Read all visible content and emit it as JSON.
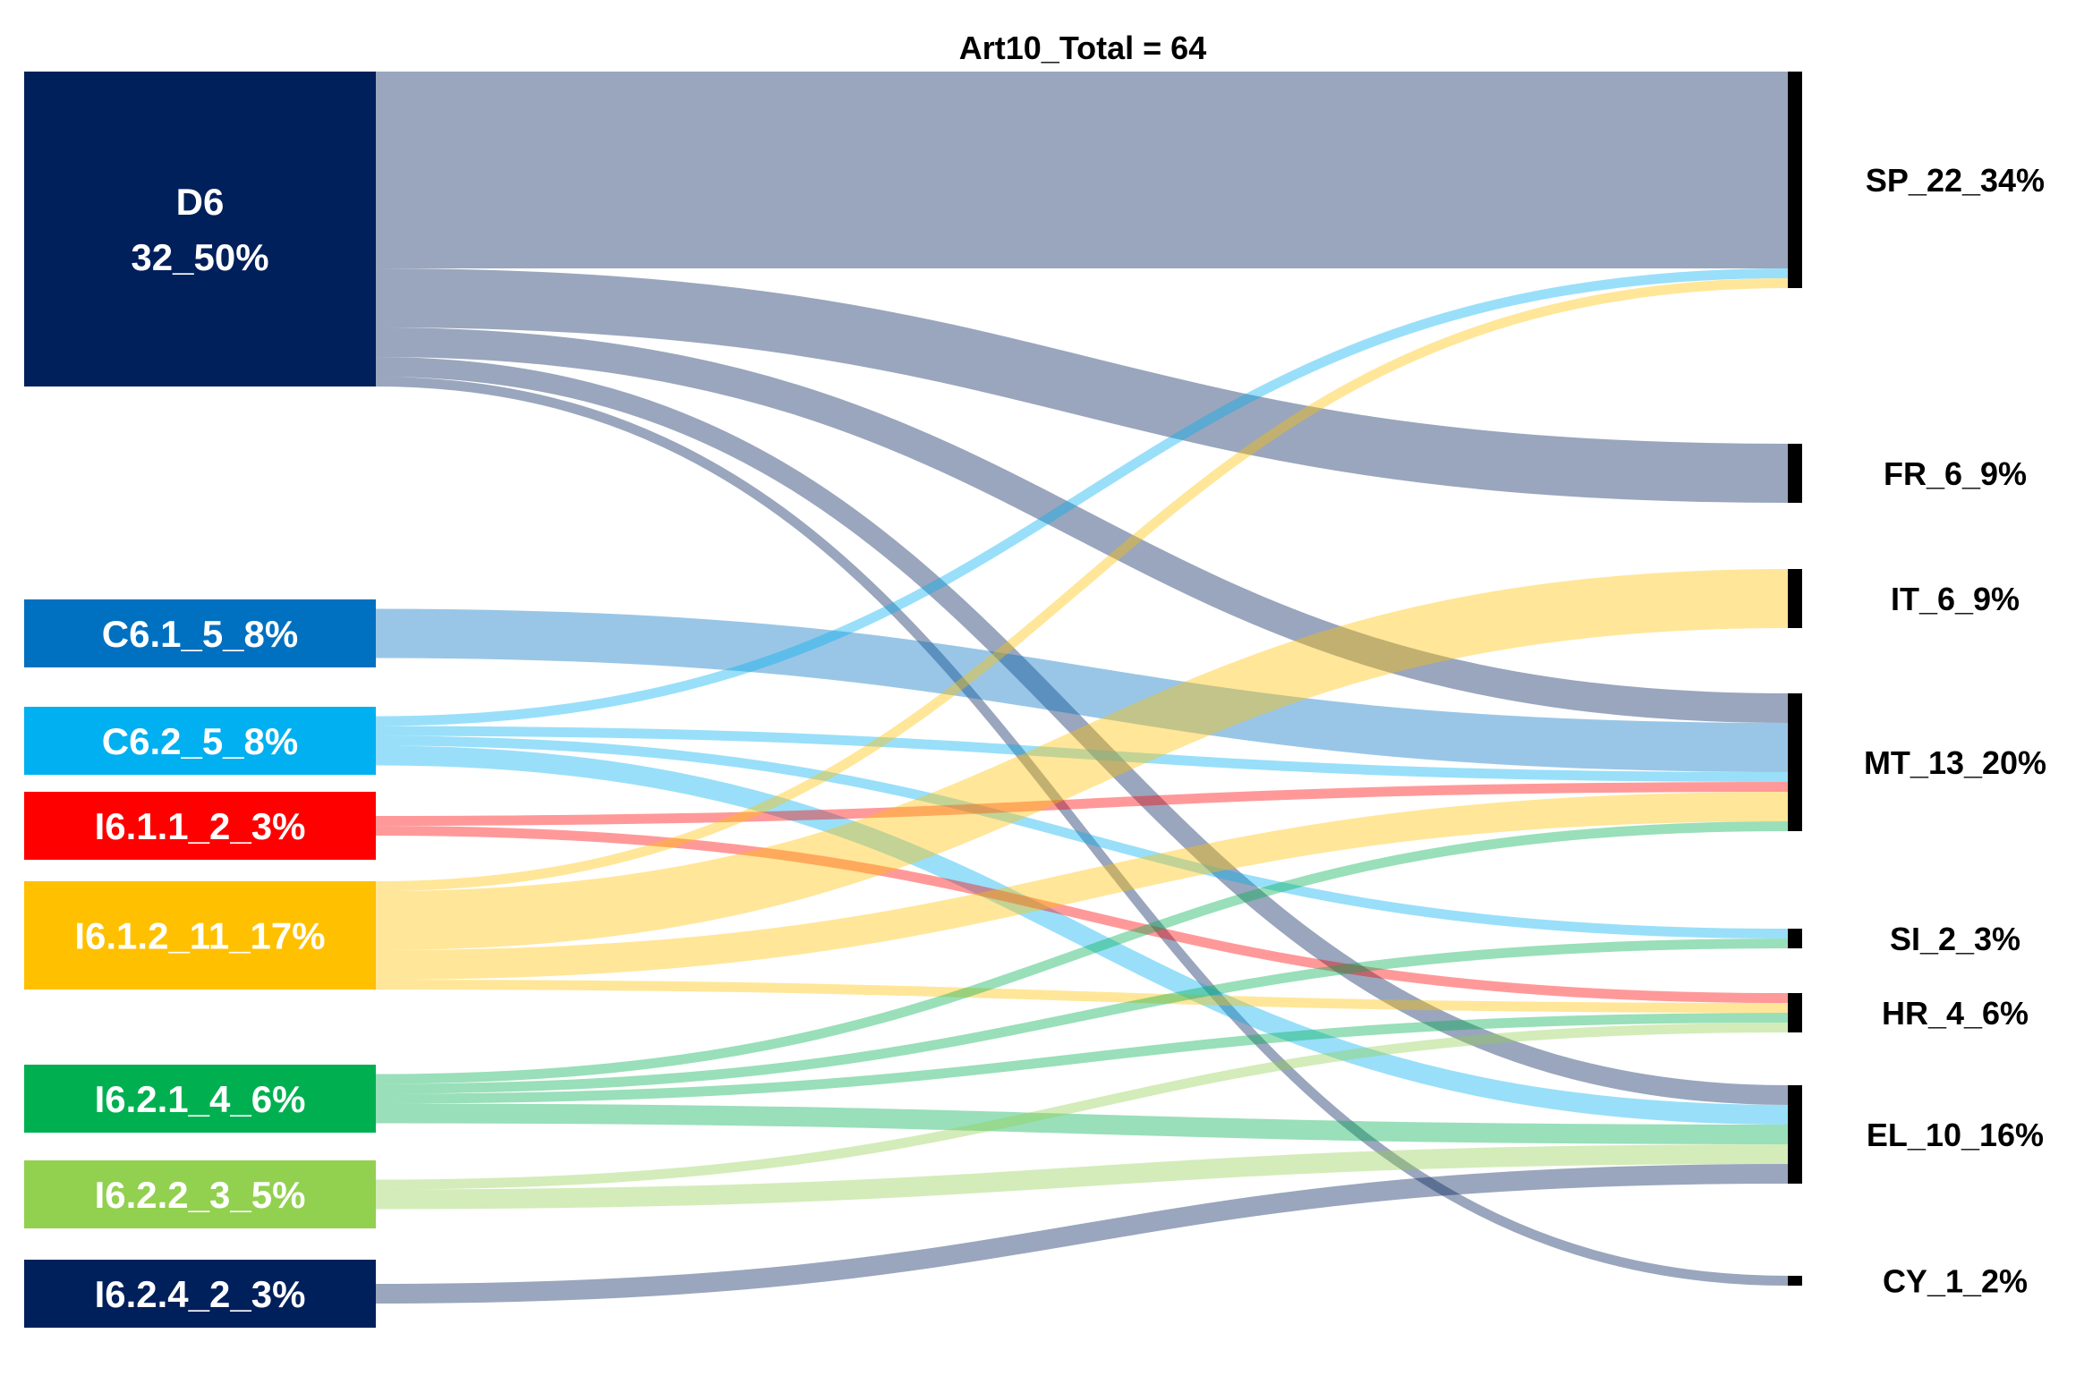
{
  "title": "Art10_Total = 64",
  "colors": {
    "D6": "#00205b",
    "C6.1": "#0070c0",
    "C6.2": "#00b0f0",
    "I6.1.1": "#ff0000",
    "I6.1.2": "#ffc000",
    "I6.2.1": "#00b050",
    "I6.2.2": "#92d050",
    "I6.2.4": "#00205b",
    "target": "#000000"
  },
  "sources": [
    {
      "id": "D6",
      "label_lines": [
        "D6",
        "32_50%"
      ]
    },
    {
      "id": "C6.1",
      "label_lines": [
        "C6.1_5_8%"
      ]
    },
    {
      "id": "C6.2",
      "label_lines": [
        "C6.2_5_8%"
      ]
    },
    {
      "id": "I6.1.1",
      "label_lines": [
        "I6.1.1_2_3%"
      ]
    },
    {
      "id": "I6.1.2",
      "label_lines": [
        "I6.1.2_11_17%"
      ]
    },
    {
      "id": "I6.2.1",
      "label_lines": [
        "I6.2.1_4_6%"
      ]
    },
    {
      "id": "I6.2.2",
      "label_lines": [
        "I6.2.2_3_5%"
      ]
    },
    {
      "id": "I6.2.4",
      "label_lines": [
        "I6.2.4_2_3%"
      ]
    }
  ],
  "targets": [
    {
      "id": "SP",
      "label": "SP_22_34%"
    },
    {
      "id": "FR",
      "label": "FR_6_9%"
    },
    {
      "id": "IT",
      "label": "IT_6_9%"
    },
    {
      "id": "MT",
      "label": "MT_13_20%"
    },
    {
      "id": "SI",
      "label": "SI_2_3%"
    },
    {
      "id": "HR",
      "label": "HR_4_6%"
    },
    {
      "id": "EL",
      "label": "EL_10_16%"
    },
    {
      "id": "CY",
      "label": "CY_1_2%"
    }
  ],
  "flows": [
    {
      "source": "D6",
      "target": "SP",
      "value": 20
    },
    {
      "source": "D6",
      "target": "FR",
      "value": 6
    },
    {
      "source": "D6",
      "target": "MT",
      "value": 3
    },
    {
      "source": "D6",
      "target": "EL",
      "value": 2
    },
    {
      "source": "D6",
      "target": "CY",
      "value": 1
    },
    {
      "source": "C6.1",
      "target": "MT",
      "value": 5
    },
    {
      "source": "C6.2",
      "target": "SP",
      "value": 1
    },
    {
      "source": "C6.2",
      "target": "MT",
      "value": 1
    },
    {
      "source": "C6.2",
      "target": "SI",
      "value": 1
    },
    {
      "source": "C6.2",
      "target": "EL",
      "value": 2
    },
    {
      "source": "I6.1.1",
      "target": "MT",
      "value": 1
    },
    {
      "source": "I6.1.1",
      "target": "HR",
      "value": 1
    },
    {
      "source": "I6.1.2",
      "target": "SP",
      "value": 1
    },
    {
      "source": "I6.1.2",
      "target": "IT",
      "value": 6
    },
    {
      "source": "I6.1.2",
      "target": "MT",
      "value": 3
    },
    {
      "source": "I6.1.2",
      "target": "HR",
      "value": 1
    },
    {
      "source": "I6.2.1",
      "target": "MT",
      "value": 1
    },
    {
      "source": "I6.2.1",
      "target": "SI",
      "value": 1
    },
    {
      "source": "I6.2.1",
      "target": "HR",
      "value": 1
    },
    {
      "source": "I6.2.1",
      "target": "EL",
      "value": 2
    },
    {
      "source": "I6.2.2",
      "target": "HR",
      "value": 1
    },
    {
      "source": "I6.2.2",
      "target": "EL",
      "value": 2
    },
    {
      "source": "I6.2.4",
      "target": "EL",
      "value": 2
    }
  ]
}
